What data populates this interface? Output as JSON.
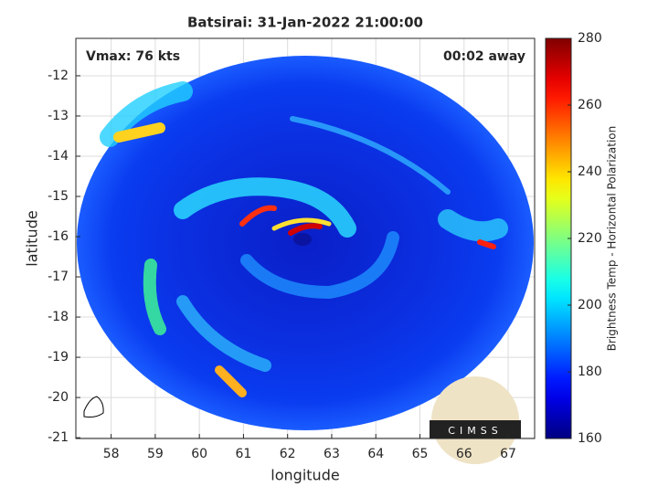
{
  "chart_data": {
    "type": "image",
    "title": "Batsirai: 31-Jan-2022 21:00:00",
    "xlabel": "longitude",
    "ylabel": "latitude",
    "xlim": [
      57.2,
      67.6
    ],
    "ylim": [
      -21.02,
      -11.07
    ],
    "xticks": [
      58,
      59,
      60,
      61,
      62,
      63,
      64,
      65,
      66,
      67
    ],
    "yticks": [
      -12,
      -13,
      -14,
      -15,
      -16,
      -17,
      -18,
      -19,
      -20,
      -21
    ],
    "grid": true,
    "annotations": [
      "Vmax: 76 kts",
      "00:02 away"
    ],
    "logo_text": "CIMSS",
    "colormap": "jet",
    "colorbar": {
      "label": "Brightness Temp - Horizontal Polarization",
      "lim": [
        160,
        280
      ],
      "ticks": [
        160,
        180,
        200,
        220,
        240,
        260,
        280
      ]
    }
  }
}
